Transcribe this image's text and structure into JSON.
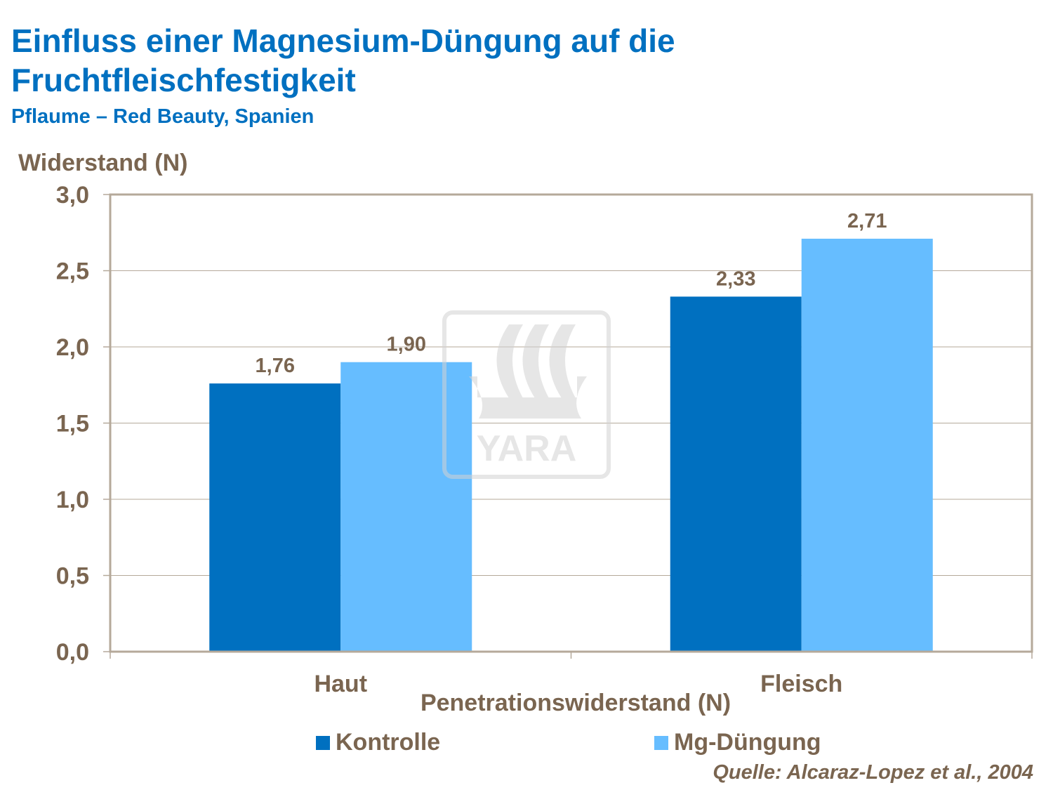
{
  "chart_data": {
    "type": "bar",
    "title": "Einfluss einer Magnesium-Düngung auf die Fruchtfleischfestigkeit",
    "subtitle": "Pflaume – Red Beauty, Spanien",
    "xlabel": "Penetrationswiderstand (N)",
    "ylabel": "Widerstand (N)",
    "categories": [
      "Haut",
      "Fleisch"
    ],
    "series": [
      {
        "name": "Kontrolle",
        "values": [
          1.76,
          2.33
        ],
        "labels": [
          "1,76",
          "2,33"
        ],
        "color": "#0070c0"
      },
      {
        "name": "Mg-Düngung",
        "values": [
          1.9,
          2.71
        ],
        "labels": [
          "1,90",
          "2,71"
        ],
        "color": "#66bdff"
      }
    ],
    "ylim": [
      0,
      3.0
    ],
    "yticks": [
      "0,0",
      "0,5",
      "1,0",
      "1,5",
      "2,0",
      "2,5",
      "3,0"
    ],
    "grid": true,
    "legend": "bottom",
    "source": "Quelle: Alcaraz-Lopez et al., 2004",
    "watermark": "YARA"
  }
}
